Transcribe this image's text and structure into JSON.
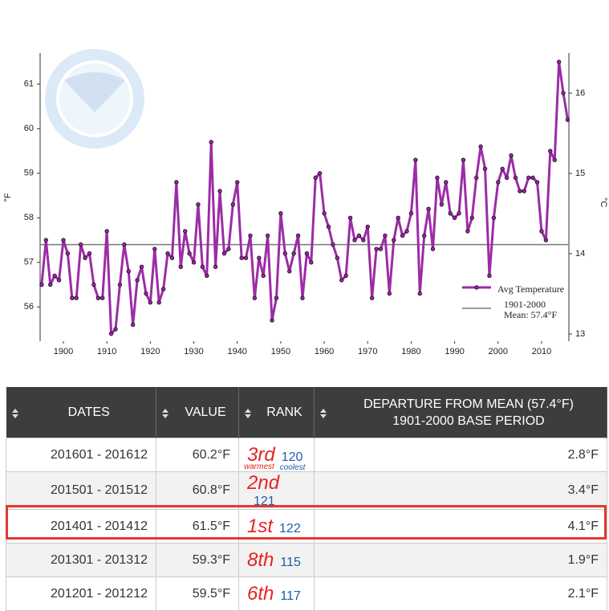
{
  "chart_data": {
    "type": "line",
    "y_label": "°F",
    "y2_label": "°C",
    "x": [
      1895,
      1896,
      1897,
      1898,
      1899,
      1900,
      1901,
      1902,
      1903,
      1904,
      1905,
      1906,
      1907,
      1908,
      1909,
      1910,
      1911,
      1912,
      1913,
      1914,
      1915,
      1916,
      1917,
      1918,
      1919,
      1920,
      1921,
      1922,
      1923,
      1924,
      1925,
      1926,
      1927,
      1928,
      1929,
      1930,
      1931,
      1932,
      1933,
      1934,
      1935,
      1936,
      1937,
      1938,
      1939,
      1940,
      1941,
      1942,
      1943,
      1944,
      1945,
      1946,
      1947,
      1948,
      1949,
      1950,
      1951,
      1952,
      1953,
      1954,
      1955,
      1956,
      1957,
      1958,
      1959,
      1960,
      1961,
      1962,
      1963,
      1964,
      1965,
      1966,
      1967,
      1968,
      1969,
      1970,
      1971,
      1972,
      1973,
      1974,
      1975,
      1976,
      1977,
      1978,
      1979,
      1980,
      1981,
      1982,
      1983,
      1984,
      1985,
      1986,
      1987,
      1988,
      1989,
      1990,
      1991,
      1992,
      1993,
      1994,
      1995,
      1996,
      1997,
      1998,
      1999,
      2000,
      2001,
      2002,
      2003,
      2004,
      2005,
      2006,
      2007,
      2008,
      2009,
      2010,
      2011,
      2012,
      2013,
      2014,
      2015,
      2016
    ],
    "series": [
      {
        "name": "Avg Temperature",
        "color": "#9c2ca6",
        "marker_color": "#2b1030",
        "values": [
          56.5,
          57.5,
          56.5,
          56.7,
          56.6,
          57.5,
          57.2,
          56.2,
          56.2,
          57.4,
          57.1,
          57.2,
          56.5,
          56.2,
          56.2,
          57.7,
          55.4,
          55.5,
          56.5,
          57.4,
          56.8,
          55.6,
          56.6,
          56.9,
          56.3,
          56.1,
          57.3,
          56.1,
          56.4,
          57.2,
          57.1,
          58.8,
          56.9,
          57.7,
          57.2,
          57.0,
          58.3,
          56.9,
          56.7,
          59.7,
          56.9,
          58.6,
          57.2,
          57.3,
          58.3,
          58.8,
          57.1,
          57.1,
          57.6,
          56.2,
          57.1,
          56.7,
          57.6,
          55.7,
          56.2,
          58.1,
          57.2,
          56.8,
          57.2,
          57.6,
          56.2,
          57.2,
          57.0,
          58.9,
          59.0,
          58.1,
          57.8,
          57.4,
          57.1,
          56.6,
          56.7,
          58.0,
          57.5,
          57.6,
          57.5,
          57.8,
          56.2,
          57.3,
          57.3,
          57.6,
          56.3,
          57.5,
          58.0,
          57.6,
          57.7,
          58.1,
          59.3,
          56.3,
          57.6,
          58.2,
          57.3,
          58.9,
          58.3,
          58.8,
          58.1,
          58.0,
          58.1,
          59.3,
          57.7,
          58.0,
          58.9,
          59.6,
          59.1,
          56.7,
          58.0,
          58.8,
          59.1,
          58.9,
          59.4,
          58.9,
          58.6,
          58.6,
          58.9,
          58.9,
          58.8,
          57.7,
          57.5,
          59.5,
          59.3,
          61.5,
          60.8,
          60.2
        ]
      }
    ],
    "mean": {
      "name": [
        "1901-2000",
        "Mean: 57.4°F"
      ],
      "value": 57.4,
      "color": "#7a7a7a"
    },
    "xlim": [
      1894.65,
      2016.28
    ],
    "xticks": [
      1900,
      1910,
      1920,
      1930,
      1940,
      1950,
      1960,
      1970,
      1980,
      1990,
      2000,
      2010
    ],
    "ylim": [
      55.23,
      61.7
    ],
    "yticks": [
      56,
      57,
      58,
      59,
      60,
      61
    ],
    "y2lim": [
      12.91,
      16.5
    ],
    "y2ticks": [
      13,
      14,
      15,
      16
    ],
    "legend": "lower right"
  },
  "table": {
    "headers": [
      "DATES",
      "VALUE",
      "RANK",
      [
        "DEPARTURE FROM MEAN (57.4°F)",
        "1901-2000 BASE PERIOD"
      ]
    ],
    "rows": [
      {
        "dates": "201601 - 201612",
        "value": "60.2°F",
        "warmest_rank": "3rd",
        "coolest_rank": "120",
        "departure": "2.8°F",
        "notes": [
          "warmest",
          "coolest"
        ]
      },
      {
        "dates": "201501 - 201512",
        "value": "60.8°F",
        "warmest_rank": "2nd",
        "coolest_rank": "121",
        "departure": "3.4°F"
      },
      {
        "dates": "201401 - 201412",
        "value": "61.5°F",
        "warmest_rank": "1st",
        "coolest_rank": "122",
        "departure": "4.1°F"
      },
      {
        "dates": "201301 - 201312",
        "value": "59.3°F",
        "warmest_rank": "8th",
        "coolest_rank": "115",
        "departure": "1.9°F"
      },
      {
        "dates": "201201 - 201212",
        "value": "59.5°F",
        "warmest_rank": "6th",
        "coolest_rank": "117",
        "departure": "2.1°F"
      }
    ]
  }
}
